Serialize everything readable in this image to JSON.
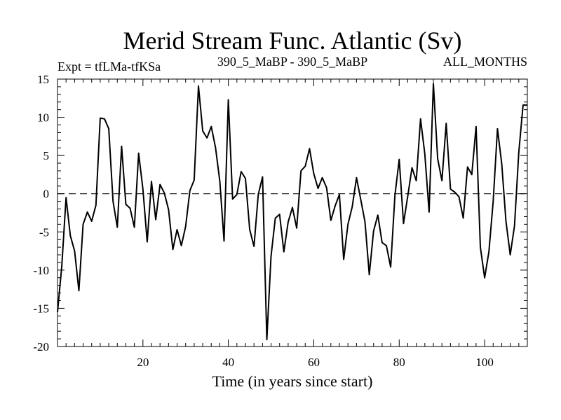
{
  "chart_data": {
    "type": "line",
    "title": "Merid Stream Func. Atlantic (Sv)",
    "subtitle_left": "Expt = tfLMa-tfKSa",
    "subtitle_center": "390_5_MaBP - 390_5_MaBP",
    "subtitle_right": "ALL_MONTHS",
    "xlabel": "Time (in years since start)",
    "ylabel": "",
    "xlim": [
      0,
      110
    ],
    "ylim": [
      -20,
      15
    ],
    "x_ticks": [
      20,
      40,
      60,
      80,
      100
    ],
    "x_tick_labels": [
      "20",
      "40",
      "60",
      "80",
      "100"
    ],
    "y_ticks": [
      -20,
      -15,
      -10,
      -5,
      0,
      5,
      10,
      15
    ],
    "y_tick_labels": [
      "-20",
      "-15",
      "-10",
      "-5",
      "0",
      "5",
      "10",
      "15"
    ],
    "reference_line": 0,
    "series": [
      {
        "name": "tfLMa-tfKSa",
        "color": "#000000",
        "x": [
          0,
          1,
          2,
          3,
          4,
          5,
          6,
          7,
          8,
          9,
          10,
          11,
          12,
          13,
          14,
          15,
          16,
          17,
          18,
          19,
          20,
          21,
          22,
          23,
          24,
          25,
          26,
          27,
          28,
          29,
          30,
          31,
          32,
          33,
          34,
          35,
          36,
          37,
          38,
          39,
          40,
          41,
          42,
          43,
          44,
          45,
          46,
          47,
          48,
          49,
          50,
          51,
          52,
          53,
          54,
          55,
          56,
          57,
          58,
          59,
          60,
          61,
          62,
          63,
          64,
          65,
          66,
          67,
          68,
          69,
          70,
          71,
          72,
          73,
          74,
          75,
          76,
          77,
          78,
          79,
          80,
          81,
          82,
          83,
          84,
          85,
          86,
          87,
          88,
          89,
          90,
          91,
          92,
          93,
          94,
          95,
          96,
          97,
          98,
          99,
          100,
          101,
          102,
          103,
          104,
          105,
          106,
          107,
          108,
          109,
          110
        ],
        "values": [
          -15.5,
          -9.5,
          -0.5,
          -5.5,
          -7.5,
          -12.7,
          -4,
          -2.4,
          -3.6,
          -1.5,
          9.9,
          9.8,
          8.5,
          -1,
          -4.4,
          6.2,
          -1.4,
          -1.9,
          -4.4,
          5.3,
          0.6,
          -6.3,
          1.6,
          -3.4,
          1.2,
          0.1,
          -2.1,
          -7.3,
          -4.7,
          -6.8,
          -4.3,
          0.4,
          1.8,
          14.1,
          8.2,
          7.3,
          8.8,
          6,
          1.6,
          -6.2,
          12.3,
          -0.7,
          -0.1,
          2.9,
          2,
          -4.7,
          -6.9,
          -0.1,
          2.2,
          -19.1,
          -8.2,
          -3.2,
          -2.7,
          -7.6,
          -3.7,
          -1.8,
          -4.5,
          3,
          3.6,
          5.9,
          2.6,
          0.7,
          2.1,
          0.8,
          -3.5,
          -1.6,
          -0.1,
          -8.6,
          -4,
          -1.7,
          2.1,
          -0.8,
          -3.7,
          -10.6,
          -4.9,
          -2.8,
          -6.4,
          -6.8,
          -9.6,
          -0.2,
          4.5,
          -3.9,
          -0.3,
          3.4,
          1.7,
          9.8,
          5.2,
          -2.4,
          14.4,
          4.6,
          1.7,
          9.2,
          0.6,
          0.2,
          -0.4,
          -3.2,
          3.5,
          2.5,
          8.8,
          -7,
          -11,
          -7.6,
          -1,
          8.5,
          3.9,
          -3.6,
          -8,
          -4.2,
          5.4,
          11.6,
          11.6
        ]
      }
    ]
  }
}
